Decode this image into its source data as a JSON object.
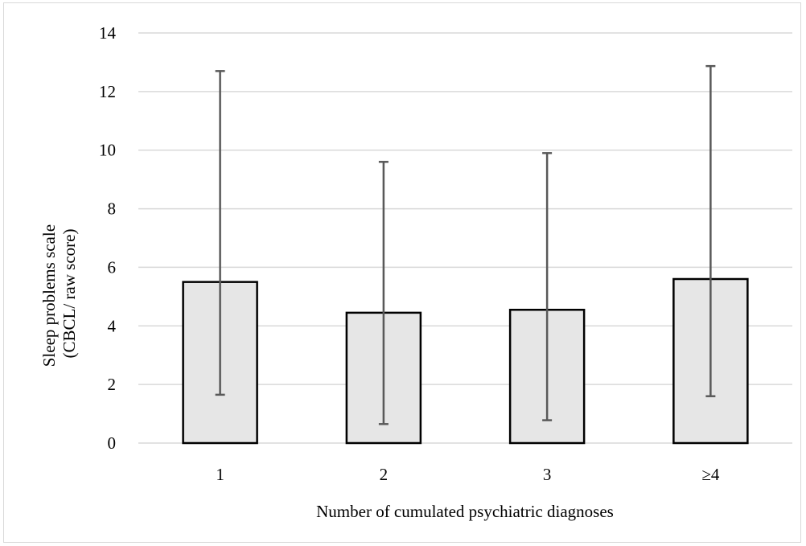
{
  "chart_data": {
    "type": "bar",
    "title": "",
    "xlabel": "Number of cumulated psychiatric diagnoses",
    "ylabel_lines": [
      "Sleep problems scale",
      "(CBCL/ raw score)"
    ],
    "categories": [
      "1",
      "2",
      "3",
      "≥4"
    ],
    "values": [
      5.5,
      4.45,
      4.55,
      5.6
    ],
    "error_low": [
      1.65,
      0.65,
      0.78,
      1.6
    ],
    "error_high": [
      12.7,
      9.6,
      9.9,
      12.87
    ],
    "ylim": [
      0,
      14
    ],
    "yticks": [
      0,
      2,
      4,
      6,
      8,
      10,
      12,
      14
    ],
    "ytick_labels": [
      "0",
      "2",
      "4",
      "6",
      "8",
      "10",
      "12",
      "14"
    ],
    "grid": true,
    "legend": "none",
    "colors": {
      "bar_fill": "#e6e6e6",
      "bar_stroke": "#000000",
      "error_bar": "#595959",
      "grid": "#d9d9d9"
    }
  }
}
